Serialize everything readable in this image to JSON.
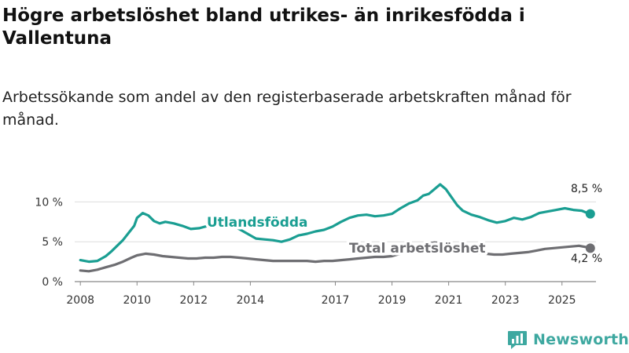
{
  "title": "Högre arbetslöshet bland utrikes- än inrikesfödda i Vallentuna",
  "subtitle": "Arbetssökande som andel av den registerbaserade arbetskraften månad för månad.",
  "brand": {
    "name": "Newsworthy",
    "icon": "bar-chart-logo-icon"
  },
  "colors": {
    "utlandsfodda": "#1a9e92",
    "total": "#6e6e72",
    "grid": "#dddddd",
    "axis": "#888888"
  },
  "chart_data": {
    "type": "line",
    "ylim": [
      0,
      12.5
    ],
    "xlim": [
      2007.8,
      2026.2
    ],
    "yticks": [
      0,
      5,
      10
    ],
    "ytick_labels": [
      "0 %",
      "5 %",
      "10 %"
    ],
    "xticks": [
      2008,
      2010,
      2012,
      2014,
      2017,
      2019,
      2021,
      2023,
      2025
    ],
    "xtick_labels": [
      "2008",
      "2010",
      "2012",
      "2014",
      "2017",
      "2019",
      "2021",
      "2023",
      "2025"
    ],
    "series": [
      {
        "name": "Utlandsfödda",
        "label": "Utlandsfödda",
        "end_label": "8,5 %",
        "x": [
          2008.0,
          2008.3,
          2008.6,
          2008.9,
          2009.1,
          2009.3,
          2009.5,
          2009.7,
          2009.9,
          2010.0,
          2010.2,
          2010.4,
          2010.6,
          2010.8,
          2011.0,
          2011.3,
          2011.6,
          2011.9,
          2012.2,
          2012.5,
          2012.8,
          2013.0,
          2013.3,
          2013.6,
          2013.9,
          2014.2,
          2014.5,
          2014.8,
          2015.1,
          2015.4,
          2015.7,
          2016.0,
          2016.3,
          2016.6,
          2016.9,
          2017.2,
          2017.5,
          2017.8,
          2018.1,
          2018.4,
          2018.7,
          2019.0,
          2019.3,
          2019.6,
          2019.9,
          2020.1,
          2020.3,
          2020.5,
          2020.7,
          2020.9,
          2021.1,
          2021.3,
          2021.5,
          2021.8,
          2022.1,
          2022.4,
          2022.7,
          2023.0,
          2023.3,
          2023.6,
          2023.9,
          2024.2,
          2024.5,
          2024.8,
          2025.1,
          2025.4,
          2025.7,
          2025.9,
          2026.0
        ],
        "values": [
          2.7,
          2.5,
          2.6,
          3.2,
          3.8,
          4.5,
          5.2,
          6.1,
          7.0,
          8.0,
          8.6,
          8.3,
          7.6,
          7.3,
          7.5,
          7.3,
          7.0,
          6.6,
          6.7,
          7.0,
          7.3,
          7.5,
          7.2,
          6.6,
          6.0,
          5.4,
          5.3,
          5.2,
          5.0,
          5.3,
          5.8,
          6.0,
          6.3,
          6.5,
          6.9,
          7.5,
          8.0,
          8.3,
          8.4,
          8.2,
          8.3,
          8.5,
          9.2,
          9.8,
          10.2,
          10.8,
          11.0,
          11.6,
          12.2,
          11.6,
          10.6,
          9.6,
          8.9,
          8.4,
          8.1,
          7.7,
          7.4,
          7.6,
          8.0,
          7.8,
          8.1,
          8.6,
          8.8,
          9.0,
          9.2,
          9.0,
          8.9,
          8.6,
          8.5
        ]
      },
      {
        "name": "Total arbetslöshet",
        "label": "Total arbetslöshet",
        "end_label": "4,2 %",
        "x": [
          2008.0,
          2008.3,
          2008.6,
          2008.9,
          2009.2,
          2009.5,
          2009.8,
          2010.0,
          2010.3,
          2010.6,
          2010.9,
          2011.2,
          2011.5,
          2011.8,
          2012.1,
          2012.4,
          2012.7,
          2013.0,
          2013.3,
          2013.6,
          2013.9,
          2014.2,
          2014.5,
          2014.8,
          2015.1,
          2015.4,
          2015.7,
          2016.0,
          2016.3,
          2016.6,
          2016.9,
          2017.2,
          2017.5,
          2017.8,
          2018.1,
          2018.4,
          2018.7,
          2019.0,
          2019.3,
          2019.6,
          2019.9,
          2020.2,
          2020.5,
          2020.8,
          2021.1,
          2021.4,
          2021.7,
          2022.0,
          2022.3,
          2022.6,
          2022.9,
          2023.2,
          2023.5,
          2023.8,
          2024.1,
          2024.4,
          2024.7,
          2025.0,
          2025.3,
          2025.6,
          2025.9,
          2026.0
        ],
        "values": [
          1.4,
          1.3,
          1.5,
          1.8,
          2.1,
          2.5,
          3.0,
          3.3,
          3.5,
          3.4,
          3.2,
          3.1,
          3.0,
          2.9,
          2.9,
          3.0,
          3.0,
          3.1,
          3.1,
          3.0,
          2.9,
          2.8,
          2.7,
          2.6,
          2.6,
          2.6,
          2.6,
          2.6,
          2.5,
          2.6,
          2.6,
          2.7,
          2.8,
          2.9,
          3.0,
          3.1,
          3.1,
          3.2,
          3.5,
          3.8,
          4.2,
          4.7,
          4.9,
          4.8,
          4.5,
          4.1,
          3.8,
          3.6,
          3.5,
          3.4,
          3.4,
          3.5,
          3.6,
          3.7,
          3.9,
          4.1,
          4.2,
          4.3,
          4.4,
          4.5,
          4.3,
          4.2
        ]
      }
    ]
  }
}
